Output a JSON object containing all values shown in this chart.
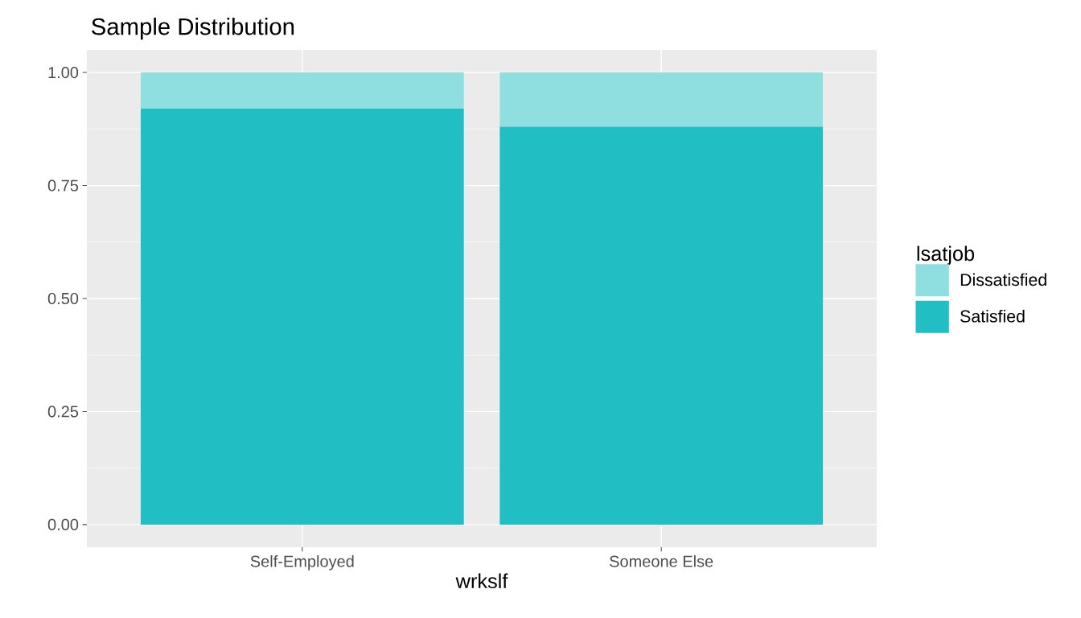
{
  "chart_data": {
    "type": "bar",
    "title": "Sample Distribution",
    "xlabel": "wrkslf",
    "legend_title": "lsatjob",
    "categories": [
      "Self-Employed",
      "Someone Else"
    ],
    "series": [
      {
        "name": "Satisfied",
        "color": "#21bec4",
        "values": [
          0.92,
          0.88
        ]
      },
      {
        "name": "Dissatisfied",
        "color": "#8fdfe0",
        "values": [
          0.08,
          0.12
        ]
      }
    ],
    "stacked": true,
    "ylim": [
      -0.05,
      1.05
    ],
    "yticks": [
      {
        "value": 0,
        "label": "0.00"
      },
      {
        "value": 0.25,
        "label": "0.25"
      },
      {
        "value": 0.5,
        "label": "0.50"
      },
      {
        "value": 0.75,
        "label": "0.75"
      },
      {
        "value": 1,
        "label": "1.00"
      }
    ],
    "grid": true,
    "legend": "right"
  }
}
